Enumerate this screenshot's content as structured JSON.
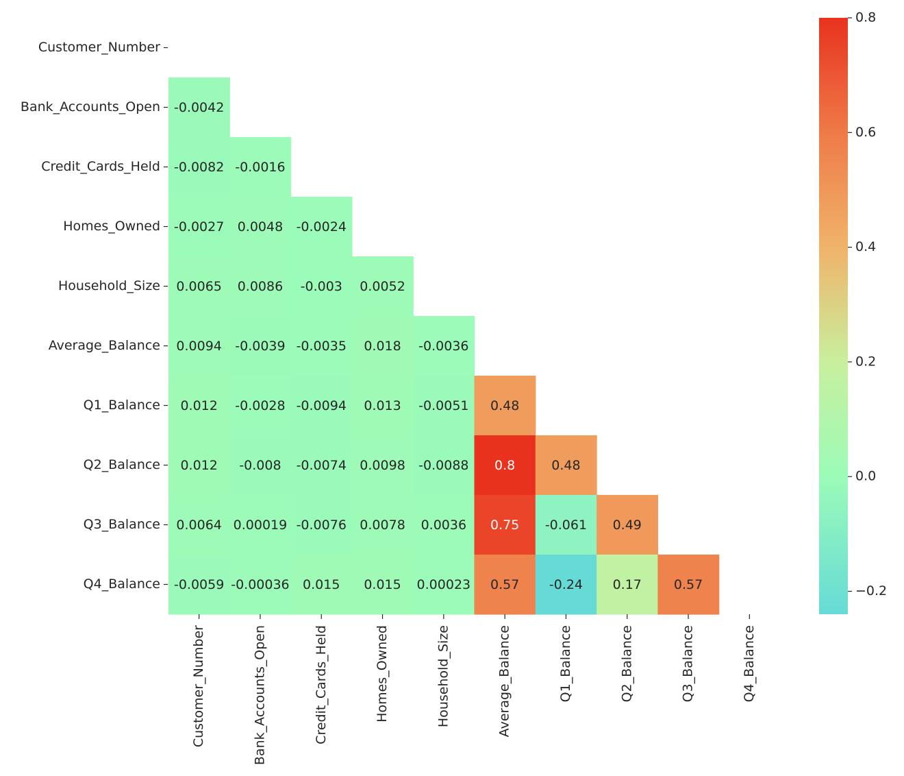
{
  "chart_data": {
    "type": "heatmap",
    "title": "",
    "xlabel": "",
    "ylabel": "",
    "variables": [
      "Customer_Number",
      "Bank_Accounts_Open",
      "Credit_Cards_Held",
      "Homes_Owned",
      "Household_Size",
      "Average_Balance",
      "Q1_Balance",
      "Q2_Balance",
      "Q3_Balance",
      "Q4_Balance"
    ],
    "mask": "upper-triangle-including-diagonal",
    "cells": [
      {
        "row": 1,
        "col": 0,
        "value": -0.0042,
        "label": "-0.0042"
      },
      {
        "row": 2,
        "col": 0,
        "value": -0.0082,
        "label": "-0.0082"
      },
      {
        "row": 2,
        "col": 1,
        "value": -0.0016,
        "label": "-0.0016"
      },
      {
        "row": 3,
        "col": 0,
        "value": -0.0027,
        "label": "-0.0027"
      },
      {
        "row": 3,
        "col": 1,
        "value": 0.0048,
        "label": "0.0048"
      },
      {
        "row": 3,
        "col": 2,
        "value": -0.0024,
        "label": "-0.0024"
      },
      {
        "row": 4,
        "col": 0,
        "value": 0.0065,
        "label": "0.0065"
      },
      {
        "row": 4,
        "col": 1,
        "value": 0.0086,
        "label": "0.0086"
      },
      {
        "row": 4,
        "col": 2,
        "value": -0.003,
        "label": "-0.003"
      },
      {
        "row": 4,
        "col": 3,
        "value": 0.0052,
        "label": "0.0052"
      },
      {
        "row": 5,
        "col": 0,
        "value": 0.0094,
        "label": "0.0094"
      },
      {
        "row": 5,
        "col": 1,
        "value": -0.0039,
        "label": "-0.0039"
      },
      {
        "row": 5,
        "col": 2,
        "value": -0.0035,
        "label": "-0.0035"
      },
      {
        "row": 5,
        "col": 3,
        "value": 0.018,
        "label": "0.018"
      },
      {
        "row": 5,
        "col": 4,
        "value": -0.0036,
        "label": "-0.0036"
      },
      {
        "row": 6,
        "col": 0,
        "value": 0.012,
        "label": "0.012"
      },
      {
        "row": 6,
        "col": 1,
        "value": -0.0028,
        "label": "-0.0028"
      },
      {
        "row": 6,
        "col": 2,
        "value": -0.0094,
        "label": "-0.0094"
      },
      {
        "row": 6,
        "col": 3,
        "value": 0.013,
        "label": "0.013"
      },
      {
        "row": 6,
        "col": 4,
        "value": -0.0051,
        "label": "-0.0051"
      },
      {
        "row": 6,
        "col": 5,
        "value": 0.48,
        "label": "0.48"
      },
      {
        "row": 7,
        "col": 0,
        "value": 0.012,
        "label": "0.012"
      },
      {
        "row": 7,
        "col": 1,
        "value": -0.008,
        "label": "-0.008"
      },
      {
        "row": 7,
        "col": 2,
        "value": -0.0074,
        "label": "-0.0074"
      },
      {
        "row": 7,
        "col": 3,
        "value": 0.0098,
        "label": "0.0098"
      },
      {
        "row": 7,
        "col": 4,
        "value": -0.0088,
        "label": "-0.0088"
      },
      {
        "row": 7,
        "col": 5,
        "value": 0.8,
        "label": "0.8"
      },
      {
        "row": 7,
        "col": 6,
        "value": 0.48,
        "label": "0.48"
      },
      {
        "row": 8,
        "col": 0,
        "value": 0.0064,
        "label": "0.0064"
      },
      {
        "row": 8,
        "col": 1,
        "value": 0.00019,
        "label": "0.00019"
      },
      {
        "row": 8,
        "col": 2,
        "value": -0.0076,
        "label": "-0.0076"
      },
      {
        "row": 8,
        "col": 3,
        "value": 0.0078,
        "label": "0.0078"
      },
      {
        "row": 8,
        "col": 4,
        "value": 0.0036,
        "label": "0.0036"
      },
      {
        "row": 8,
        "col": 5,
        "value": 0.75,
        "label": "0.75"
      },
      {
        "row": 8,
        "col": 6,
        "value": -0.061,
        "label": "-0.061"
      },
      {
        "row": 8,
        "col": 7,
        "value": 0.49,
        "label": "0.49"
      },
      {
        "row": 9,
        "col": 0,
        "value": -0.0059,
        "label": "-0.0059"
      },
      {
        "row": 9,
        "col": 1,
        "value": -0.00036,
        "label": "-0.00036"
      },
      {
        "row": 9,
        "col": 2,
        "value": 0.015,
        "label": "0.015"
      },
      {
        "row": 9,
        "col": 3,
        "value": 0.015,
        "label": "0.015"
      },
      {
        "row": 9,
        "col": 4,
        "value": 0.00023,
        "label": "0.00023"
      },
      {
        "row": 9,
        "col": 5,
        "value": 0.57,
        "label": "0.57"
      },
      {
        "row": 9,
        "col": 6,
        "value": -0.24,
        "label": "-0.24"
      },
      {
        "row": 9,
        "col": 7,
        "value": 0.17,
        "label": "0.17"
      },
      {
        "row": 9,
        "col": 8,
        "value": 0.57,
        "label": "0.57"
      }
    ],
    "colorbar": {
      "range": [
        -0.24,
        0.8
      ],
      "ticks": [
        0.8,
        0.6,
        0.4,
        0.2,
        0.0,
        -0.2
      ],
      "tick_labels": [
        "0.8",
        "0.6",
        "0.4",
        "0.2",
        "0.0",
        "−0.2"
      ],
      "placement": "right"
    },
    "colormap": [
      {
        "value": -0.24,
        "color": "#66dbd6"
      },
      {
        "value": 0.0,
        "color": "#9cfbb8"
      },
      {
        "value": 0.2,
        "color": "#c8ef9e"
      },
      {
        "value": 0.4,
        "color": "#f0b36a"
      },
      {
        "value": 0.6,
        "color": "#ef7a48"
      },
      {
        "value": 0.8,
        "color": "#e8321e"
      }
    ],
    "grid": false,
    "legend": "none"
  }
}
